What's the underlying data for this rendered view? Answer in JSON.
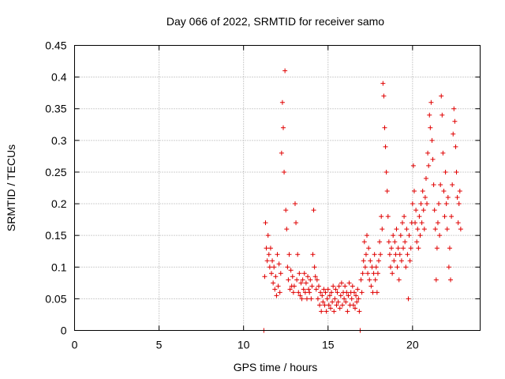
{
  "chart_data": {
    "type": "scatter",
    "title": "Day 066 of 2022, SRMTID for receiver samo",
    "xlabel": "GPS time / hours",
    "ylabel": "SRMTID / TECUs",
    "xlim": [
      0,
      24
    ],
    "ylim": [
      0,
      0.45
    ],
    "xticks": [
      0,
      5,
      10,
      15,
      20
    ],
    "yticks": [
      0,
      0.05,
      0.1,
      0.15,
      0.2,
      0.25,
      0.3,
      0.35,
      0.4,
      0.45
    ],
    "marker": "+",
    "color": "#e00000",
    "grid": true,
    "series": [
      {
        "name": "samo",
        "points": [
          [
            11.2,
            0.0
          ],
          [
            11.25,
            0.085
          ],
          [
            11.3,
            0.17
          ],
          [
            11.35,
            0.13
          ],
          [
            11.4,
            0.11
          ],
          [
            11.45,
            0.15
          ],
          [
            11.5,
            0.12
          ],
          [
            11.55,
            0.1
          ],
          [
            11.6,
            0.13
          ],
          [
            11.65,
            0.09
          ],
          [
            11.7,
            0.11
          ],
          [
            11.75,
            0.075
          ],
          [
            11.8,
            0.1
          ],
          [
            11.85,
            0.065
          ],
          [
            11.9,
            0.085
          ],
          [
            11.95,
            0.055
          ],
          [
            12.0,
            0.12
          ],
          [
            12.05,
            0.07
          ],
          [
            12.1,
            0.105
          ],
          [
            12.15,
            0.06
          ],
          [
            12.2,
            0.09
          ],
          [
            12.25,
            0.28
          ],
          [
            12.3,
            0.36
          ],
          [
            12.35,
            0.32
          ],
          [
            12.4,
            0.25
          ],
          [
            12.45,
            0.41
          ],
          [
            12.5,
            0.19
          ],
          [
            12.55,
            0.16
          ],
          [
            12.6,
            0.1
          ],
          [
            12.65,
            0.08
          ],
          [
            12.7,
            0.12
          ],
          [
            12.75,
            0.065
          ],
          [
            12.8,
            0.095
          ],
          [
            12.85,
            0.07
          ],
          [
            12.9,
            0.085
          ],
          [
            12.95,
            0.06
          ],
          [
            13.0,
            0.07
          ],
          [
            13.05,
            0.2
          ],
          [
            13.1,
            0.17
          ],
          [
            13.15,
            0.08
          ],
          [
            13.2,
            0.12
          ],
          [
            13.25,
            0.06
          ],
          [
            13.3,
            0.09
          ],
          [
            13.35,
            0.055
          ],
          [
            13.4,
            0.075
          ],
          [
            13.45,
            0.05
          ],
          [
            13.5,
            0.08
          ],
          [
            13.55,
            0.065
          ],
          [
            13.6,
            0.09
          ],
          [
            13.65,
            0.06
          ],
          [
            13.7,
            0.075
          ],
          [
            13.75,
            0.05
          ],
          [
            13.8,
            0.085
          ],
          [
            13.85,
            0.065
          ],
          [
            13.9,
            0.06
          ],
          [
            13.95,
            0.08
          ],
          [
            14.0,
            0.05
          ],
          [
            14.05,
            0.07
          ],
          [
            14.1,
            0.12
          ],
          [
            14.15,
            0.19
          ],
          [
            14.2,
            0.1
          ],
          [
            14.25,
            0.085
          ],
          [
            14.3,
            0.065
          ],
          [
            14.35,
            0.08
          ],
          [
            14.4,
            0.05
          ],
          [
            14.45,
            0.07
          ],
          [
            14.5,
            0.04
          ],
          [
            14.55,
            0.06
          ],
          [
            14.6,
            0.03
          ],
          [
            14.65,
            0.055
          ],
          [
            14.7,
            0.045
          ],
          [
            14.75,
            0.065
          ],
          [
            14.8,
            0.04
          ],
          [
            14.85,
            0.06
          ],
          [
            14.9,
            0.03
          ],
          [
            14.95,
            0.05
          ],
          [
            15.0,
            0.065
          ],
          [
            15.05,
            0.04
          ],
          [
            15.1,
            0.055
          ],
          [
            15.15,
            0.035
          ],
          [
            15.2,
            0.06
          ],
          [
            15.25,
            0.045
          ],
          [
            15.3,
            0.07
          ],
          [
            15.35,
            0.03
          ],
          [
            15.4,
            0.05
          ],
          [
            15.45,
            0.065
          ],
          [
            15.5,
            0.04
          ],
          [
            15.55,
            0.06
          ],
          [
            15.6,
            0.045
          ],
          [
            15.65,
            0.07
          ],
          [
            15.7,
            0.035
          ],
          [
            15.75,
            0.055
          ],
          [
            15.8,
            0.075
          ],
          [
            15.85,
            0.04
          ],
          [
            15.9,
            0.06
          ],
          [
            15.95,
            0.05
          ],
          [
            16.0,
            0.07
          ],
          [
            16.05,
            0.045
          ],
          [
            16.1,
            0.06
          ],
          [
            16.15,
            0.03
          ],
          [
            16.2,
            0.055
          ],
          [
            16.25,
            0.075
          ],
          [
            16.3,
            0.04
          ],
          [
            16.35,
            0.06
          ],
          [
            16.4,
            0.05
          ],
          [
            16.45,
            0.07
          ],
          [
            16.5,
            0.04
          ],
          [
            16.55,
            0.06
          ],
          [
            16.6,
            0.035
          ],
          [
            16.65,
            0.055
          ],
          [
            16.7,
            0.045
          ],
          [
            16.75,
            0.065
          ],
          [
            16.8,
            0.05
          ],
          [
            16.85,
            0.03
          ],
          [
            16.9,
            0.0
          ],
          [
            16.95,
            0.08
          ],
          [
            17.0,
            0.06
          ],
          [
            17.05,
            0.09
          ],
          [
            17.1,
            0.11
          ],
          [
            17.15,
            0.14
          ],
          [
            17.2,
            0.1
          ],
          [
            17.25,
            0.12
          ],
          [
            17.3,
            0.15
          ],
          [
            17.35,
            0.09
          ],
          [
            17.4,
            0.13
          ],
          [
            17.45,
            0.08
          ],
          [
            17.5,
            0.11
          ],
          [
            17.55,
            0.07
          ],
          [
            17.6,
            0.1
          ],
          [
            17.65,
            0.06
          ],
          [
            17.7,
            0.09
          ],
          [
            17.75,
            0.12
          ],
          [
            17.8,
            0.08
          ],
          [
            17.85,
            0.1
          ],
          [
            17.9,
            0.06
          ],
          [
            17.95,
            0.09
          ],
          [
            18.0,
            0.11
          ],
          [
            18.05,
            0.14
          ],
          [
            18.1,
            0.12
          ],
          [
            18.15,
            0.18
          ],
          [
            18.2,
            0.16
          ],
          [
            18.25,
            0.39
          ],
          [
            18.3,
            0.37
          ],
          [
            18.35,
            0.32
          ],
          [
            18.4,
            0.29
          ],
          [
            18.45,
            0.25
          ],
          [
            18.5,
            0.22
          ],
          [
            18.55,
            0.18
          ],
          [
            18.6,
            0.14
          ],
          [
            18.65,
            0.12
          ],
          [
            18.7,
            0.1
          ],
          [
            18.75,
            0.13
          ],
          [
            18.8,
            0.09
          ],
          [
            18.85,
            0.15
          ],
          [
            18.9,
            0.11
          ],
          [
            18.95,
            0.14
          ],
          [
            19.0,
            0.12
          ],
          [
            19.05,
            0.16
          ],
          [
            19.1,
            0.1
          ],
          [
            19.15,
            0.13
          ],
          [
            19.2,
            0.08
          ],
          [
            19.25,
            0.12
          ],
          [
            19.3,
            0.15
          ],
          [
            19.35,
            0.11
          ],
          [
            19.4,
            0.17
          ],
          [
            19.45,
            0.13
          ],
          [
            19.5,
            0.18
          ],
          [
            19.55,
            0.14
          ],
          [
            19.6,
            0.1
          ],
          [
            19.65,
            0.16
          ],
          [
            19.7,
            0.12
          ],
          [
            19.75,
            0.05
          ],
          [
            19.8,
            0.15
          ],
          [
            19.85,
            0.11
          ],
          [
            19.9,
            0.13
          ],
          [
            19.95,
            0.17
          ],
          [
            20.0,
            0.2
          ],
          [
            20.05,
            0.26
          ],
          [
            20.1,
            0.22
          ],
          [
            20.15,
            0.17
          ],
          [
            20.2,
            0.19
          ],
          [
            20.25,
            0.14
          ],
          [
            20.3,
            0.16
          ],
          [
            20.35,
            0.13
          ],
          [
            20.4,
            0.18
          ],
          [
            20.45,
            0.15
          ],
          [
            20.5,
            0.2
          ],
          [
            20.55,
            0.17
          ],
          [
            20.6,
            0.22
          ],
          [
            20.65,
            0.19
          ],
          [
            20.7,
            0.16
          ],
          [
            20.75,
            0.21
          ],
          [
            20.8,
            0.24
          ],
          [
            20.85,
            0.2
          ],
          [
            20.9,
            0.28
          ],
          [
            20.95,
            0.26
          ],
          [
            21.0,
            0.34
          ],
          [
            21.05,
            0.32
          ],
          [
            21.1,
            0.36
          ],
          [
            21.15,
            0.3
          ],
          [
            21.2,
            0.27
          ],
          [
            21.25,
            0.23
          ],
          [
            21.3,
            0.19
          ],
          [
            21.35,
            0.16
          ],
          [
            21.4,
            0.08
          ],
          [
            21.45,
            0.13
          ],
          [
            21.5,
            0.17
          ],
          [
            21.55,
            0.2
          ],
          [
            21.6,
            0.15
          ],
          [
            21.65,
            0.23
          ],
          [
            21.7,
            0.37
          ],
          [
            21.75,
            0.34
          ],
          [
            21.8,
            0.28
          ],
          [
            21.85,
            0.22
          ],
          [
            21.9,
            0.18
          ],
          [
            21.95,
            0.25
          ],
          [
            22.0,
            0.2
          ],
          [
            22.05,
            0.16
          ],
          [
            22.1,
            0.21
          ],
          [
            22.15,
            0.1
          ],
          [
            22.2,
            0.13
          ],
          [
            22.25,
            0.08
          ],
          [
            22.3,
            0.18
          ],
          [
            22.35,
            0.23
          ],
          [
            22.4,
            0.31
          ],
          [
            22.45,
            0.35
          ],
          [
            22.5,
            0.33
          ],
          [
            22.55,
            0.29
          ],
          [
            22.6,
            0.25
          ],
          [
            22.65,
            0.21
          ],
          [
            22.7,
            0.17
          ],
          [
            22.75,
            0.2
          ],
          [
            22.8,
            0.22
          ],
          [
            22.85,
            0.16
          ]
        ]
      }
    ]
  }
}
